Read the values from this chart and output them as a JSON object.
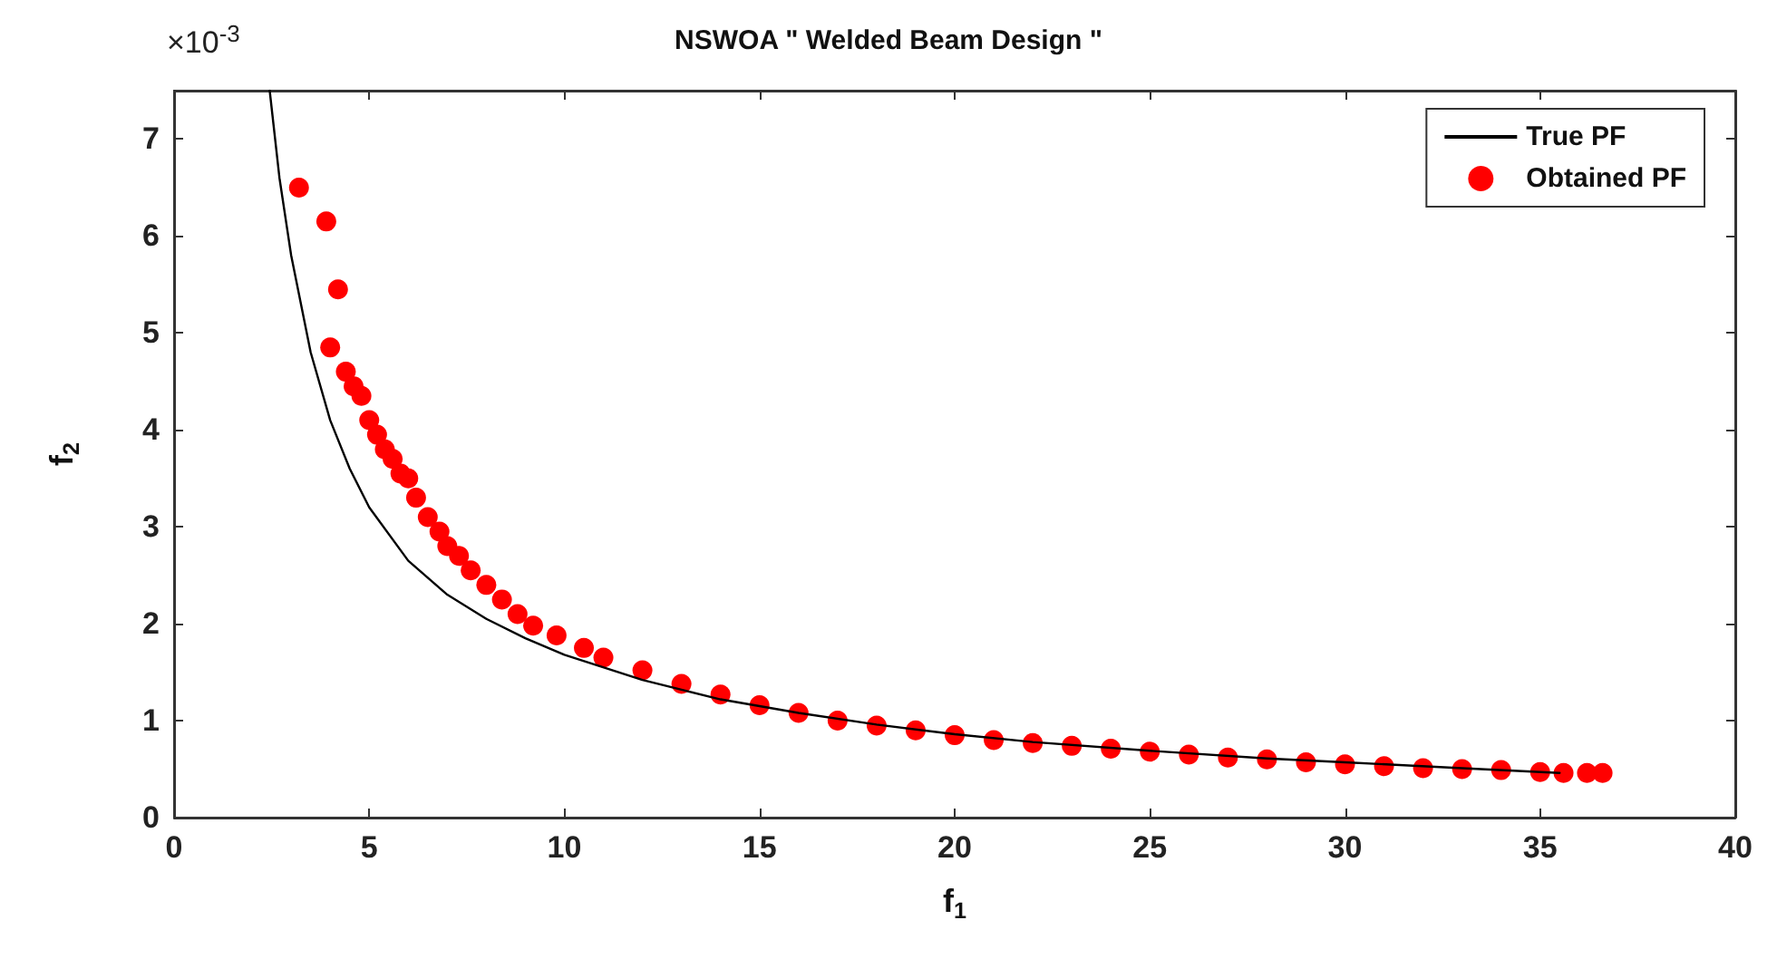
{
  "chart_data": {
    "type": "scatter",
    "title": "NSWOA \" Welded Beam Design \"",
    "xlabel": "f$_{1}$",
    "ylabel": "f$_{2}$",
    "annotations": [
      "×10$^{-3}$"
    ],
    "xlim": [
      0,
      40
    ],
    "xticks": [
      0,
      5,
      10,
      15,
      20,
      25,
      30,
      35,
      40
    ],
    "ylim": [
      0,
      7.5
    ],
    "yticks": [
      0,
      1,
      2,
      3,
      4,
      5,
      6,
      7
    ],
    "grid": false,
    "legend": "top right",
    "series": [
      {
        "name": "True PF",
        "type": "line",
        "color": "#000000",
        "marker": "none",
        "line_style": "solid",
        "x": [
          2.45,
          2.7,
          3,
          3.5,
          4,
          4.5,
          5,
          6,
          7,
          8,
          9,
          10,
          12,
          14,
          16,
          18,
          20,
          22,
          25,
          28,
          30,
          33,
          35.5
        ],
        "values": [
          7.5,
          6.6,
          5.8,
          4.8,
          4.1,
          3.6,
          3.2,
          2.65,
          2.3,
          2.05,
          1.85,
          1.68,
          1.42,
          1.22,
          1.08,
          0.96,
          0.86,
          0.78,
          0.69,
          0.61,
          0.57,
          0.51,
          0.46
        ]
      },
      {
        "name": "Obtained PF",
        "color": "#ff0000",
        "marker": "circle",
        "x": [
          3.2,
          3.9,
          4.0,
          4.2,
          4.4,
          4.6,
          4.8,
          5.0,
          5.2,
          5.4,
          5.6,
          5.8,
          6.0,
          6.2,
          6.5,
          6.8,
          7.0,
          7.3,
          7.6,
          8,
          8.4,
          8.8,
          9.2,
          9.8,
          10.5,
          11,
          12,
          13,
          14,
          15,
          16,
          17,
          18,
          19,
          20,
          21,
          22,
          23,
          24,
          25,
          26,
          27,
          28,
          29,
          30,
          31,
          32,
          33,
          34,
          35,
          35.6,
          36.2,
          36.6
        ],
        "values": [
          6.5,
          6.15,
          4.85,
          5.45,
          4.6,
          4.45,
          4.35,
          4.1,
          3.95,
          3.8,
          3.7,
          3.55,
          3.5,
          3.3,
          3.1,
          2.95,
          2.8,
          2.7,
          2.55,
          2.4,
          2.25,
          2.1,
          1.98,
          1.88,
          1.75,
          1.65,
          1.52,
          1.38,
          1.27,
          1.16,
          1.08,
          1.0,
          0.95,
          0.9,
          0.85,
          0.8,
          0.77,
          0.74,
          0.71,
          0.68,
          0.65,
          0.62,
          0.6,
          0.57,
          0.55,
          0.53,
          0.51,
          0.5,
          0.49,
          0.47,
          0.46,
          0.46,
          0.46
        ]
      }
    ]
  }
}
